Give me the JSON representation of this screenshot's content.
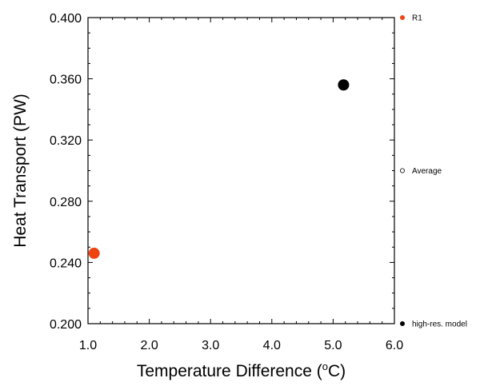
{
  "chart_data": {
    "type": "scatter",
    "xlabel": "Temperature Difference (",
    "xlabel_sup": "o",
    "xlabel_tail": "C)",
    "ylabel": "Heat Transport (PW)",
    "xlim": [
      1.0,
      6.0
    ],
    "ylim": [
      0.2,
      0.4
    ],
    "x_ticks": [
      "1.0",
      "2.0",
      "3.0",
      "4.0",
      "5.0",
      "6.0"
    ],
    "y_ticks": [
      "0.200",
      "0.240",
      "0.280",
      "0.320",
      "0.360",
      "0.400"
    ],
    "grid": false,
    "legend_position": "right",
    "series": [
      {
        "name": "R1",
        "color": "#ee4411",
        "marker": "filled-circle",
        "points": [
          {
            "x": 1.1,
            "y": 0.246
          }
        ]
      },
      {
        "name": "Average",
        "color": "#000000",
        "marker": "open-circle",
        "points": []
      },
      {
        "name": "high-res. model",
        "color": "#000000",
        "marker": "filled-circle",
        "points": [
          {
            "x": 5.17,
            "y": 0.356
          }
        ]
      }
    ]
  }
}
